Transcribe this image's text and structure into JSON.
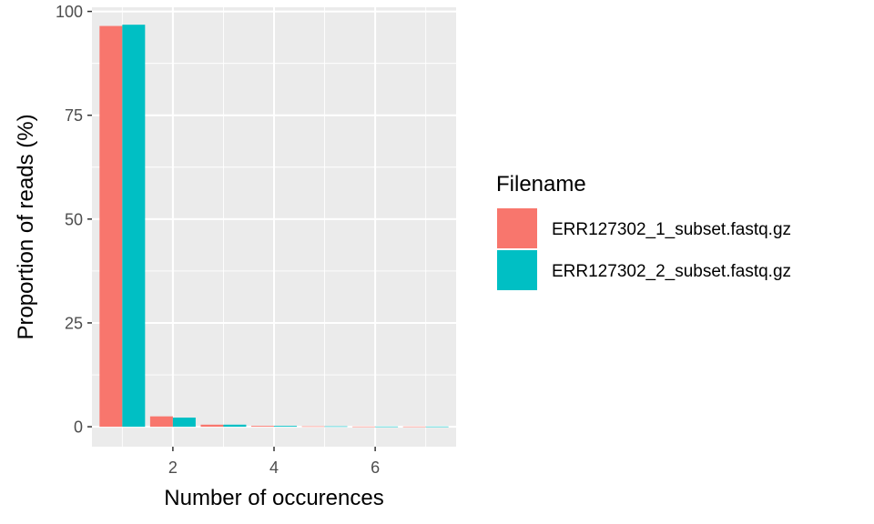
{
  "chart_data": {
    "type": "bar",
    "xlabel": "Number of occurences",
    "ylabel": "Proportion of reads (%)",
    "xlim": [
      0.4,
      7.6
    ],
    "ylim": [
      -4.8,
      101
    ],
    "x_ticks": [
      2,
      4,
      6
    ],
    "y_ticks": [
      0,
      25,
      50,
      75,
      100
    ],
    "x": [
      1,
      2,
      3,
      4,
      5,
      6,
      7
    ],
    "series": [
      {
        "name": "ERR127302_1_subset.fastq.gz",
        "color": "#F8766D",
        "values": [
          96.5,
          2.5,
          0.5,
          0.2,
          0.1,
          0.05,
          0.05
        ]
      },
      {
        "name": "ERR127302_2_subset.fastq.gz",
        "color": "#00BFC4",
        "values": [
          96.8,
          2.2,
          0.5,
          0.2,
          0.1,
          0.05,
          0.05
        ]
      }
    ],
    "grid": true,
    "panel_background": "#EBEBEB",
    "legend": {
      "title": "Filename",
      "position": "right"
    }
  }
}
